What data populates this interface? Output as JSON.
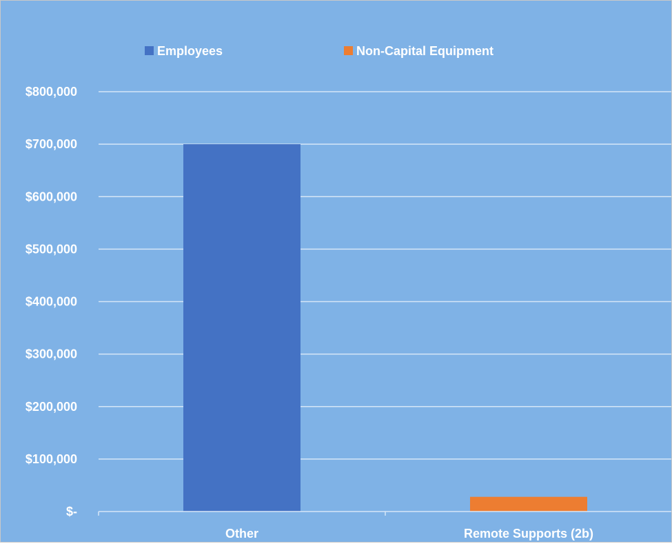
{
  "colors": {
    "background": "#7fb2e6",
    "gridline": "#d6e6f7",
    "axis": "#d6e6f7",
    "frame": "#c8c8c8",
    "text": "#ffffff"
  },
  "chart_data": {
    "type": "bar",
    "title": "",
    "xlabel": "",
    "ylabel": "",
    "categories": [
      "Other",
      "Remote Supports (2b)"
    ],
    "series": [
      {
        "name": "Employees",
        "color": "#4472c4",
        "values": [
          700000,
          0
        ]
      },
      {
        "name": "Non-Capital Equipment",
        "color": "#ed7d31",
        "values": [
          0,
          28000
        ]
      }
    ],
    "ylim": [
      0,
      800000
    ],
    "yticks": [
      0,
      100000,
      200000,
      300000,
      400000,
      500000,
      600000,
      700000,
      800000
    ],
    "ytick_labels": [
      "$-",
      "$100,000",
      "$200,000",
      "$300,000",
      "$400,000",
      "$500,000",
      "$600,000",
      "$700,000",
      "$800,000"
    ],
    "grid": true,
    "legend_position": "top"
  }
}
